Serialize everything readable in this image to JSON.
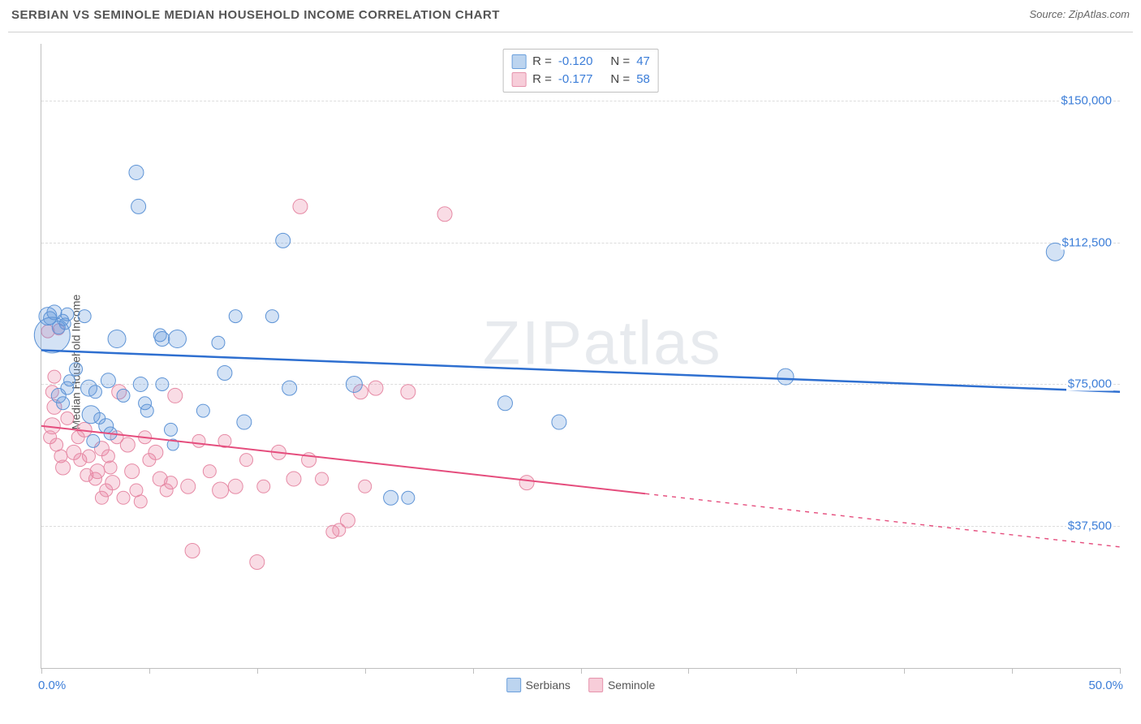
{
  "title": "SERBIAN VS SEMINOLE MEDIAN HOUSEHOLD INCOME CORRELATION CHART",
  "source": "Source: ZipAtlas.com",
  "watermark_part1": "ZIP",
  "watermark_part2": "atlas",
  "y_axis_title": "Median Household Income",
  "x_axis": {
    "min": 0.0,
    "max": 50.0,
    "unit": "%",
    "ticks": [
      0,
      5,
      10,
      15,
      20,
      25,
      30,
      35,
      40,
      45,
      50
    ],
    "label_min": "0.0%",
    "label_max": "50.0%"
  },
  "y_axis": {
    "min": 0,
    "max": 165000,
    "gridlines": [
      37500,
      75000,
      112500,
      150000
    ],
    "labels": [
      "$37,500",
      "$75,000",
      "$112,500",
      "$150,000"
    ]
  },
  "series": [
    {
      "name": "Serbians",
      "fill": "rgba(96,150,220,0.28)",
      "stroke": "#5e94d6",
      "line_stroke": "#2e6fd0",
      "line_width": 2.5,
      "swatch_fill": "#bcd4ef",
      "swatch_stroke": "#6a9fdc",
      "R": "-0.120",
      "N": "47",
      "trend": {
        "y_at_x0": 84000,
        "y_at_x50": 73000
      },
      "dashed_from_x": 50,
      "points": [
        {
          "x": 0.3,
          "y": 93000,
          "r": 11
        },
        {
          "x": 0.4,
          "y": 92500,
          "r": 8
        },
        {
          "x": 0.6,
          "y": 94000,
          "r": 9
        },
        {
          "x": 0.8,
          "y": 90000,
          "r": 8
        },
        {
          "x": 1.0,
          "y": 92000,
          "r": 7
        },
        {
          "x": 1.1,
          "y": 91000,
          "r": 7
        },
        {
          "x": 1.2,
          "y": 93500,
          "r": 8
        },
        {
          "x": 0.5,
          "y": 88000,
          "r": 22
        },
        {
          "x": 1.3,
          "y": 76000,
          "r": 7
        },
        {
          "x": 1.6,
          "y": 79000,
          "r": 8
        },
        {
          "x": 1.2,
          "y": 74000,
          "r": 8
        },
        {
          "x": 0.8,
          "y": 72000,
          "r": 9
        },
        {
          "x": 1.0,
          "y": 70000,
          "r": 8
        },
        {
          "x": 2.0,
          "y": 93000,
          "r": 8
        },
        {
          "x": 2.2,
          "y": 74000,
          "r": 10
        },
        {
          "x": 2.3,
          "y": 67000,
          "r": 11
        },
        {
          "x": 2.5,
          "y": 73000,
          "r": 8
        },
        {
          "x": 2.7,
          "y": 66000,
          "r": 7
        },
        {
          "x": 2.4,
          "y": 60000,
          "r": 8
        },
        {
          "x": 3.1,
          "y": 76000,
          "r": 9
        },
        {
          "x": 3.5,
          "y": 87000,
          "r": 11
        },
        {
          "x": 3.8,
          "y": 72000,
          "r": 8
        },
        {
          "x": 3.0,
          "y": 64000,
          "r": 9
        },
        {
          "x": 3.2,
          "y": 62000,
          "r": 8
        },
        {
          "x": 4.4,
          "y": 131000,
          "r": 9
        },
        {
          "x": 4.5,
          "y": 122000,
          "r": 9
        },
        {
          "x": 4.6,
          "y": 75000,
          "r": 9
        },
        {
          "x": 4.8,
          "y": 70000,
          "r": 8
        },
        {
          "x": 4.9,
          "y": 68000,
          "r": 8
        },
        {
          "x": 5.5,
          "y": 88000,
          "r": 8
        },
        {
          "x": 5.6,
          "y": 87000,
          "r": 9
        },
        {
          "x": 5.6,
          "y": 75000,
          "r": 8
        },
        {
          "x": 6.3,
          "y": 87000,
          "r": 11
        },
        {
          "x": 6.0,
          "y": 63000,
          "r": 8
        },
        {
          "x": 6.1,
          "y": 59000,
          "r": 7
        },
        {
          "x": 7.5,
          "y": 68000,
          "r": 8
        },
        {
          "x": 8.2,
          "y": 86000,
          "r": 8
        },
        {
          "x": 8.5,
          "y": 78000,
          "r": 9
        },
        {
          "x": 9.0,
          "y": 93000,
          "r": 8
        },
        {
          "x": 9.4,
          "y": 65000,
          "r": 9
        },
        {
          "x": 10.7,
          "y": 93000,
          "r": 8
        },
        {
          "x": 11.2,
          "y": 113000,
          "r": 9
        },
        {
          "x": 11.5,
          "y": 74000,
          "r": 9
        },
        {
          "x": 14.5,
          "y": 75000,
          "r": 10
        },
        {
          "x": 16.2,
          "y": 45000,
          "r": 9
        },
        {
          "x": 17.0,
          "y": 45000,
          "r": 8
        },
        {
          "x": 21.5,
          "y": 70000,
          "r": 9
        },
        {
          "x": 24.0,
          "y": 65000,
          "r": 9
        },
        {
          "x": 34.5,
          "y": 77000,
          "r": 10
        },
        {
          "x": 47.0,
          "y": 110000,
          "r": 11
        }
      ]
    },
    {
      "name": "Seminole",
      "fill": "rgba(235,130,160,0.28)",
      "stroke": "#e68aa5",
      "line_stroke": "#e54d7d",
      "line_width": 2,
      "swatch_fill": "#f7cdd9",
      "swatch_stroke": "#e693ac",
      "R": "-0.177",
      "N": "58",
      "trend": {
        "y_at_x0": 64000,
        "y_at_x50": 32000
      },
      "dashed_from_x": 28,
      "points": [
        {
          "x": 0.3,
          "y": 89000,
          "r": 8
        },
        {
          "x": 0.8,
          "y": 89500,
          "r": 7
        },
        {
          "x": 0.6,
          "y": 77000,
          "r": 8
        },
        {
          "x": 0.5,
          "y": 73000,
          "r": 8
        },
        {
          "x": 0.6,
          "y": 69000,
          "r": 9
        },
        {
          "x": 0.5,
          "y": 64000,
          "r": 10
        },
        {
          "x": 0.4,
          "y": 61000,
          "r": 8
        },
        {
          "x": 0.7,
          "y": 59000,
          "r": 8
        },
        {
          "x": 0.9,
          "y": 56000,
          "r": 8
        },
        {
          "x": 1.0,
          "y": 53000,
          "r": 9
        },
        {
          "x": 1.2,
          "y": 66000,
          "r": 8
        },
        {
          "x": 1.5,
          "y": 57000,
          "r": 9
        },
        {
          "x": 1.7,
          "y": 61000,
          "r": 8
        },
        {
          "x": 1.8,
          "y": 55000,
          "r": 8
        },
        {
          "x": 2.0,
          "y": 63000,
          "r": 9
        },
        {
          "x": 2.1,
          "y": 51000,
          "r": 8
        },
        {
          "x": 2.2,
          "y": 56000,
          "r": 8
        },
        {
          "x": 2.5,
          "y": 50000,
          "r": 8
        },
        {
          "x": 2.6,
          "y": 52000,
          "r": 9
        },
        {
          "x": 2.8,
          "y": 58000,
          "r": 9
        },
        {
          "x": 2.8,
          "y": 45000,
          "r": 8
        },
        {
          "x": 3.0,
          "y": 47000,
          "r": 8
        },
        {
          "x": 3.1,
          "y": 56000,
          "r": 8
        },
        {
          "x": 3.2,
          "y": 53000,
          "r": 8
        },
        {
          "x": 3.3,
          "y": 49000,
          "r": 9
        },
        {
          "x": 3.5,
          "y": 61000,
          "r": 8
        },
        {
          "x": 3.6,
          "y": 73000,
          "r": 9
        },
        {
          "x": 3.8,
          "y": 45000,
          "r": 8
        },
        {
          "x": 4.0,
          "y": 59000,
          "r": 9
        },
        {
          "x": 4.2,
          "y": 52000,
          "r": 9
        },
        {
          "x": 4.4,
          "y": 47000,
          "r": 8
        },
        {
          "x": 4.6,
          "y": 44000,
          "r": 8
        },
        {
          "x": 4.8,
          "y": 61000,
          "r": 8
        },
        {
          "x": 5.0,
          "y": 55000,
          "r": 8
        },
        {
          "x": 5.3,
          "y": 57000,
          "r": 9
        },
        {
          "x": 5.5,
          "y": 50000,
          "r": 9
        },
        {
          "x": 5.8,
          "y": 47000,
          "r": 8
        },
        {
          "x": 6.0,
          "y": 49000,
          "r": 8
        },
        {
          "x": 6.2,
          "y": 72000,
          "r": 9
        },
        {
          "x": 6.8,
          "y": 48000,
          "r": 9
        },
        {
          "x": 7.0,
          "y": 31000,
          "r": 9
        },
        {
          "x": 7.3,
          "y": 60000,
          "r": 8
        },
        {
          "x": 7.8,
          "y": 52000,
          "r": 8
        },
        {
          "x": 8.3,
          "y": 47000,
          "r": 10
        },
        {
          "x": 8.5,
          "y": 60000,
          "r": 8
        },
        {
          "x": 9.0,
          "y": 48000,
          "r": 9
        },
        {
          "x": 9.5,
          "y": 55000,
          "r": 8
        },
        {
          "x": 10.0,
          "y": 28000,
          "r": 9
        },
        {
          "x": 10.3,
          "y": 48000,
          "r": 8
        },
        {
          "x": 11.0,
          "y": 57000,
          "r": 9
        },
        {
          "x": 11.7,
          "y": 50000,
          "r": 9
        },
        {
          "x": 12.0,
          "y": 122000,
          "r": 9
        },
        {
          "x": 12.4,
          "y": 55000,
          "r": 9
        },
        {
          "x": 13.0,
          "y": 50000,
          "r": 8
        },
        {
          "x": 13.5,
          "y": 36000,
          "r": 8
        },
        {
          "x": 13.8,
          "y": 36500,
          "r": 8
        },
        {
          "x": 14.2,
          "y": 39000,
          "r": 9
        },
        {
          "x": 14.8,
          "y": 73000,
          "r": 9
        },
        {
          "x": 15.0,
          "y": 48000,
          "r": 8
        },
        {
          "x": 15.5,
          "y": 74000,
          "r": 9
        },
        {
          "x": 17.0,
          "y": 73000,
          "r": 9
        },
        {
          "x": 18.7,
          "y": 120000,
          "r": 9
        },
        {
          "x": 22.5,
          "y": 49000,
          "r": 9
        }
      ]
    }
  ],
  "legend_bottom": [
    {
      "label": "Serbians",
      "swatch": 0
    },
    {
      "label": "Seminole",
      "swatch": 1
    }
  ],
  "background_color": "#ffffff",
  "grid_color": "#dcdcdc",
  "axis_color": "#bfbfbf",
  "value_color": "#3b7dd8",
  "label_color": "#555"
}
